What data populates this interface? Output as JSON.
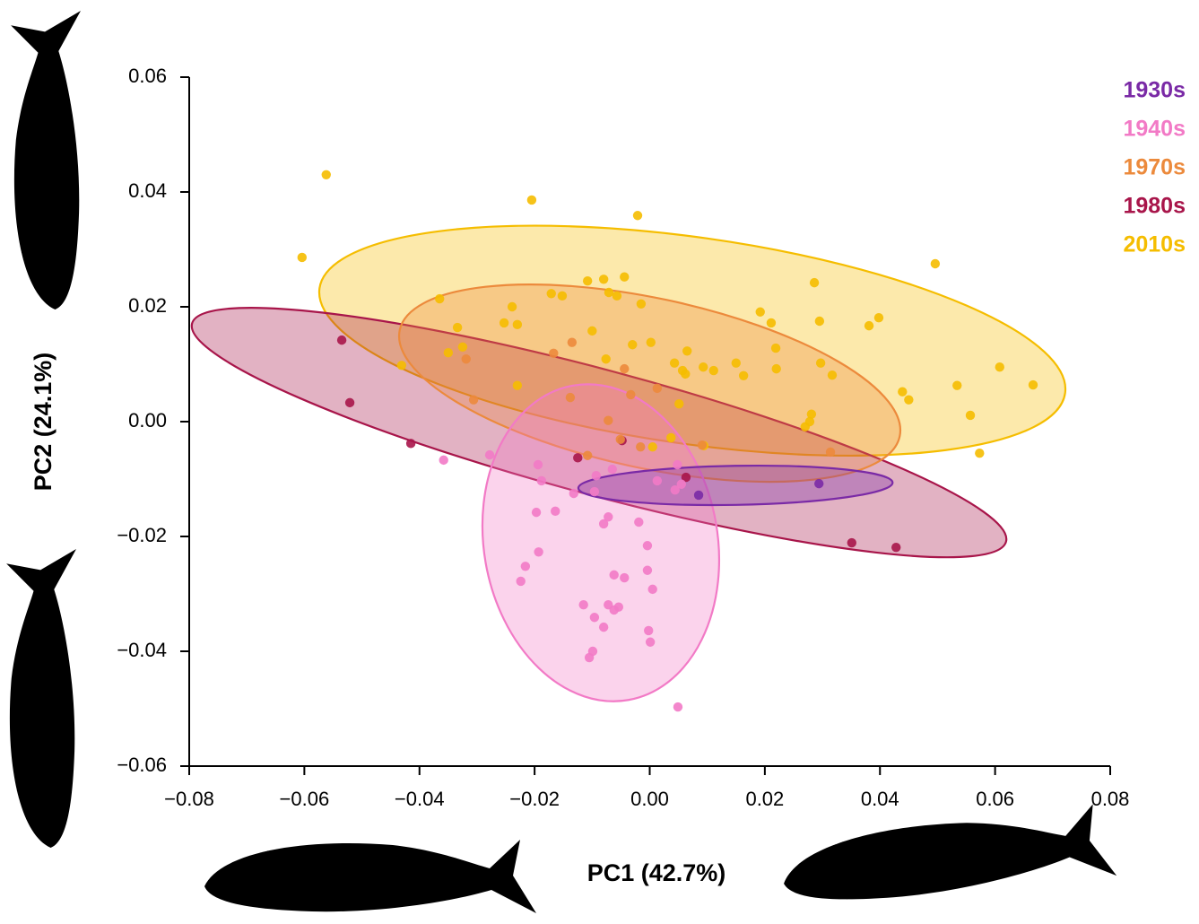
{
  "chart_data": {
    "type": "scatter",
    "x_label": "PC1 (42.7%)",
    "y_label": "PC2 (24.1%)",
    "xlim": [
      -0.08,
      0.08
    ],
    "ylim": [
      -0.06,
      0.06
    ],
    "xticks": [
      {
        "value": -0.08,
        "label": "−0.08"
      },
      {
        "value": -0.06,
        "label": "−0.06"
      },
      {
        "value": -0.04,
        "label": "−0.04"
      },
      {
        "value": -0.02,
        "label": "−0.02"
      },
      {
        "value": 0,
        "label": "0.00"
      },
      {
        "value": 0.02,
        "label": "0.02"
      },
      {
        "value": 0.04,
        "label": "0.04"
      },
      {
        "value": 0.06,
        "label": "0.06"
      },
      {
        "value": 0.08,
        "label": "0.08"
      }
    ],
    "yticks": [
      {
        "value": -0.06,
        "label": "−0.06"
      },
      {
        "value": -0.04,
        "label": "−0.04"
      },
      {
        "value": -0.02,
        "label": "−0.02"
      },
      {
        "value": 0,
        "label": "0.00"
      },
      {
        "value": 0.02,
        "label": "0.02"
      },
      {
        "value": 0.04,
        "label": "0.04"
      },
      {
        "value": 0.06,
        "label": "0.06"
      }
    ],
    "legend": "top-right",
    "series": [
      {
        "name": "1930s",
        "color": "#7a2aa6",
        "ellipse": {
          "center": [
            0.0149,
            -0.0111
          ],
          "radii": [
            0.0273,
            0.0034
          ],
          "angle": -1
        },
        "x": [
          0.0085,
          0.0294
        ],
        "values": [
          -0.0128,
          -0.0108
        ]
      },
      {
        "name": "1940s",
        "color": "#f27ac6",
        "ellipse": {
          "center": [
            -0.0085,
            -0.0211
          ],
          "radii": [
            0.0203,
            0.0278
          ],
          "angle": -10
        },
        "x": [
          -0.0358,
          -0.0278,
          -0.0194,
          -0.0188,
          -0.0197,
          -0.0164,
          -0.0193,
          -0.0216,
          -0.0224,
          -0.0132,
          -0.0093,
          -0.0096,
          -0.0065,
          -0.0072,
          -0.008,
          -0.0019,
          -0.0004,
          -0.0004,
          0.0005,
          -0.0062,
          -0.0044,
          -0.0115,
          -0.0072,
          -0.0054,
          -0.0062,
          -0.0096,
          -0.008,
          -0.0002,
          0.0001,
          -0.0099,
          -0.0105,
          0.0049,
          0.0048,
          0.0013,
          0.0044,
          0.0055
        ],
        "values": [
          -0.0067,
          -0.0058,
          -0.0075,
          -0.0103,
          -0.0158,
          -0.0156,
          -0.0227,
          -0.0252,
          -0.0278,
          -0.0125,
          -0.0094,
          -0.0122,
          -0.0083,
          -0.0166,
          -0.0178,
          -0.0175,
          -0.0216,
          -0.0259,
          -0.0292,
          -0.0267,
          -0.0272,
          -0.0319,
          -0.0319,
          -0.0323,
          -0.0328,
          -0.0341,
          -0.0358,
          -0.0364,
          -0.0384,
          -0.04,
          -0.0411,
          -0.0497,
          -0.0075,
          -0.0103,
          -0.0119,
          -0.0109
        ]
      },
      {
        "name": "1970s",
        "color": "#ec8a3c",
        "ellipse": {
          "center": [
            0.0,
            0.0067
          ],
          "radii": [
            0.0444,
            0.0148
          ],
          "angle": 12
        },
        "x": [
          -0.0319,
          -0.0138,
          -0.0072,
          0.0013,
          -0.0044,
          0.0314,
          -0.0108,
          -0.0033,
          -0.0306,
          -0.0167,
          -0.0135,
          0.0091,
          -0.0016,
          -0.0051
        ],
        "values": [
          0.0109,
          0.0042,
          0.0002,
          0.0058,
          0.0092,
          -0.0053,
          -0.0059,
          0.0047,
          0.0038,
          0.0119,
          0.0138,
          -0.0041,
          -0.0044,
          -0.0031
        ]
      },
      {
        "name": "1980s",
        "color": "#a8154a",
        "ellipse": {
          "center": [
            -0.0088,
            -0.0019
          ],
          "radii": [
            0.0732,
            0.0109
          ],
          "angle": 15
        },
        "x": [
          -0.0535,
          -0.0521,
          -0.0415,
          -0.0125,
          -0.0048,
          0.0351,
          0.0428,
          0.0063
        ],
        "values": [
          0.0142,
          0.0033,
          -0.0038,
          -0.0063,
          -0.0033,
          -0.0211,
          -0.0219,
          -0.0097
        ]
      },
      {
        "name": "2010s",
        "color": "#f5bd00",
        "ellipse": {
          "center": [
            0.0074,
            0.0141
          ],
          "radii": [
            0.0654,
            0.018
          ],
          "angle": 8
        },
        "x": [
          -0.0562,
          -0.0604,
          -0.0205,
          -0.0021,
          0.0496,
          0.0286,
          0.0398,
          0.0381,
          0.0295,
          0.0608,
          0.0666,
          0.0534,
          0.0557,
          0.0573,
          0.0439,
          0.045,
          0.0297,
          0.0317,
          0.0219,
          0.022,
          0.0211,
          0.0192,
          0.015,
          0.0163,
          0.0111,
          0.0093,
          0.0065,
          0.0002,
          -0.003,
          -0.0015,
          -0.0044,
          -0.008,
          -0.0071,
          -0.0057,
          -0.0108,
          -0.0152,
          -0.0171,
          -0.0239,
          -0.0253,
          -0.023,
          -0.0365,
          -0.0334,
          -0.0325,
          -0.035,
          -0.0431,
          -0.023,
          -0.01,
          -0.0076,
          0.0043,
          0.0057,
          0.0062,
          0.0281,
          0.0278,
          0.027,
          0.0037,
          0.0005,
          0.0051,
          0.0094
        ],
        "values": [
          0.043,
          0.0286,
          0.0386,
          0.0359,
          0.0275,
          0.0242,
          0.0181,
          0.0167,
          0.0175,
          0.0095,
          0.0064,
          0.0063,
          0.0011,
          -0.0055,
          0.0052,
          0.0038,
          0.0102,
          0.0081,
          0.0128,
          0.0092,
          0.0172,
          0.0191,
          0.0102,
          0.008,
          0.0089,
          0.0095,
          0.0123,
          0.0138,
          0.0134,
          0.0205,
          0.0252,
          0.0248,
          0.0225,
          0.0219,
          0.0245,
          0.0219,
          0.0223,
          0.02,
          0.0172,
          0.0169,
          0.0214,
          0.0164,
          0.013,
          0.012,
          0.0098,
          0.0063,
          0.0158,
          0.0109,
          0.0102,
          0.0089,
          0.0083,
          0.0013,
          0.0,
          -0.0009,
          -0.0028,
          -0.0044,
          0.0031,
          -0.0042
        ]
      }
    ]
  }
}
